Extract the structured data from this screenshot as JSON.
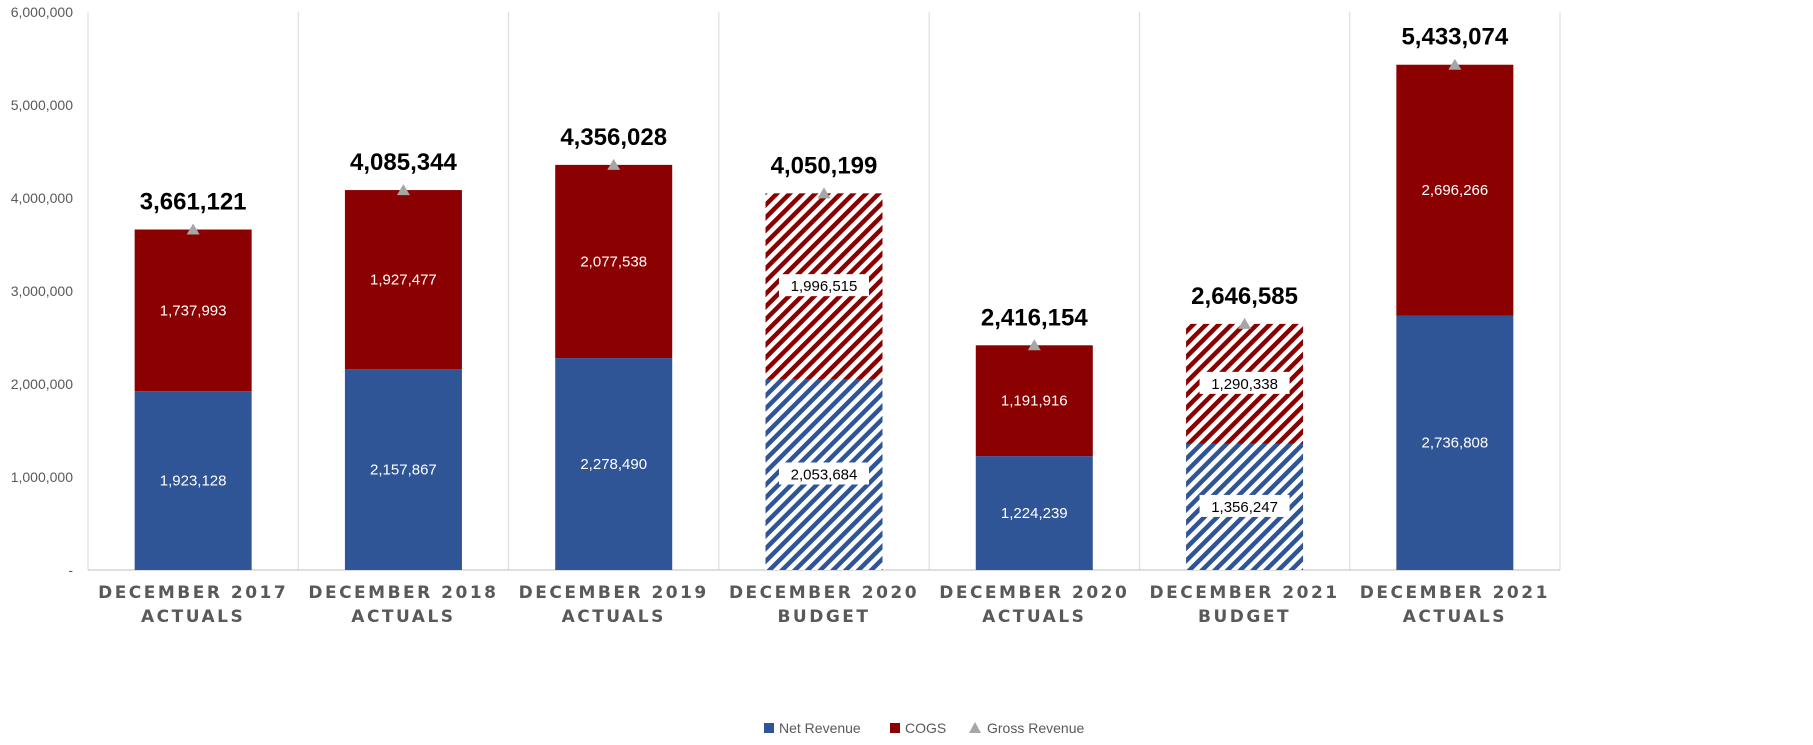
{
  "chart_data": {
    "type": "bar",
    "stacked": true,
    "title": "",
    "xlabel": "",
    "ylabel": "",
    "ylim": [
      0,
      6000000
    ],
    "yticks": [
      0,
      1000000,
      2000000,
      3000000,
      4000000,
      5000000,
      6000000
    ],
    "ytick_labels": [
      "-",
      "1,000,000",
      "2,000,000",
      "3,000,000",
      "4,000,000",
      "5,000,000",
      "6,000,000"
    ],
    "grid": "vertical separators between categories",
    "legend_position": "bottom",
    "categories": [
      [
        "DECEMBER 2017",
        "ACTUALS"
      ],
      [
        "DECEMBER 2018",
        "ACTUALS"
      ],
      [
        "DECEMBER 2019",
        "ACTUALS"
      ],
      [
        "DECEMBER 2020",
        "BUDGET"
      ],
      [
        "DECEMBER 2020",
        "ACTUALS"
      ],
      [
        "DECEMBER 2021",
        "BUDGET"
      ],
      [
        "DECEMBER 2021",
        "ACTUALS"
      ]
    ],
    "is_budget": [
      false,
      false,
      false,
      true,
      false,
      true,
      false
    ],
    "series": [
      {
        "name": "Net Revenue",
        "kind": "bar",
        "color": "#2F5597",
        "values": [
          1923128,
          2157867,
          2278490,
          2053684,
          1224239,
          1356247,
          2736808
        ],
        "labels": [
          "1,923,128",
          "2,157,867",
          "2,278,490",
          "2,053,684",
          "1,224,239",
          "1,356,247",
          "2,736,808"
        ]
      },
      {
        "name": "COGS",
        "kind": "bar",
        "color": "#8B0000",
        "values": [
          1737993,
          1927477,
          2077538,
          1996515,
          1191916,
          1290338,
          2696266
        ],
        "labels": [
          "1,737,993",
          "1,927,477",
          "2,077,538",
          "1,996,515",
          "1,191,916",
          "1,290,338",
          "2,696,266"
        ]
      },
      {
        "name": "Gross Revenue",
        "kind": "marker",
        "marker": "triangle",
        "color": "#A6A6A6",
        "values": [
          3661121,
          4085344,
          4356028,
          4050199,
          2416154,
          2646585,
          5433074
        ],
        "labels": [
          "3,661,121",
          "4,085,344",
          "4,356,028",
          "4,050,199",
          "2,416,154",
          "2,646,585",
          "5,433,074"
        ]
      }
    ]
  }
}
